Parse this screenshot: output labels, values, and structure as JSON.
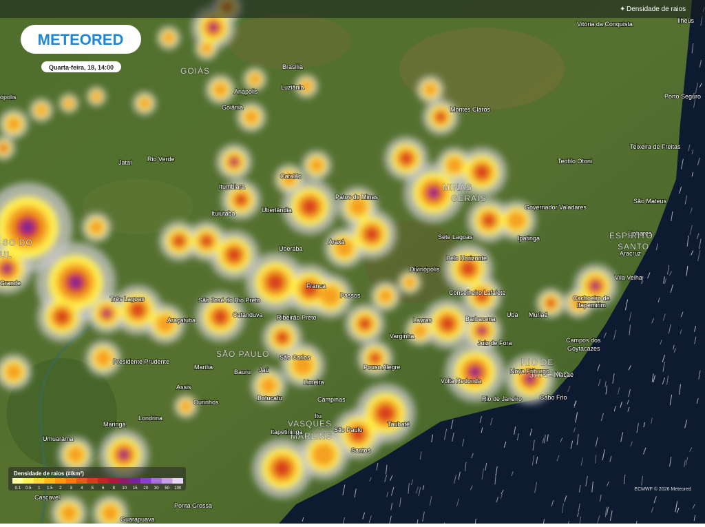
{
  "header": {
    "logo": "METEORED",
    "date": "Quarta-feira, 18, 14:00",
    "layer": "Densidade de raios"
  },
  "legend": {
    "title": "Densidade de raios (#/km²)",
    "items": [
      {
        "label": "0.1",
        "color": "#ffffa0"
      },
      {
        "label": "0.5",
        "color": "#fff060"
      },
      {
        "label": "1",
        "color": "#ffd830"
      },
      {
        "label": "1.5",
        "color": "#ffb820"
      },
      {
        "label": "2",
        "color": "#ff9a18"
      },
      {
        "label": "3",
        "color": "#f57a18"
      },
      {
        "label": "4",
        "color": "#e85a1a"
      },
      {
        "label": "5",
        "color": "#d83c1c"
      },
      {
        "label": "6",
        "color": "#c42424"
      },
      {
        "label": "8",
        "color": "#a81c3c"
      },
      {
        "label": "10",
        "color": "#8c1c6c"
      },
      {
        "label": "15",
        "color": "#7a2494"
      },
      {
        "label": "20",
        "color": "#8a40c0"
      },
      {
        "label": "30",
        "color": "#a870d8"
      },
      {
        "label": "50",
        "color": "#c8a0e8"
      },
      {
        "label": "100",
        "color": "#e8d8f8"
      }
    ]
  },
  "places": [
    "Vitória da Conquista",
    "Ilhéus",
    "Brasília",
    "GOIÁS",
    "Anápolis",
    "Luziânia",
    "Goiânia",
    "Porto Seguro",
    "Montes Claros",
    "Teixeira de Freitas",
    "Jataí",
    "Rio Verde",
    "Teófilo Otoni",
    "MINAS",
    "GERAIS",
    "Catalão",
    "Itumbiara",
    "Patos de Minas",
    "São Mateus",
    "Governador Valadares",
    "Uberlândia",
    "Ituiutaba",
    "Linhares",
    "ESPÍRITO",
    "SANTO",
    "Sete Lagoas",
    "Ipatinga",
    "Uberaba",
    "Araxá",
    "Aracruz",
    "Belo Horizonte",
    "Divinópolis",
    "Vila Velha",
    "Franca",
    "Passos",
    "Conselheiro Lafaiete",
    "Cachoeiro de",
    "Itapemirim",
    "Três Lagoas",
    "São José do Rio Preto",
    "Ribeirão Preto",
    "Araçatuba",
    "Catanduva",
    "Barbacena",
    "Ubá",
    "Muriaé",
    "Lavras",
    "Varginha",
    "Juiz de Fora",
    "Campos dos",
    "Goytacazes",
    "SÃO PAULO",
    "São Carlos",
    "Presidente Prudente",
    "Marília",
    "Bauru",
    "Jaú",
    "RIO DE",
    "JANEIRO",
    "Nova Friburgo",
    "Macaé",
    "Pouso Alegre",
    "Limeira",
    "Volta Redonda",
    "Assis",
    "Botucatu",
    "Campinas",
    "Rio de Janeiro",
    "Cabo Frio",
    "Ourinhos",
    "Taubaté",
    "Itu",
    "Londrina",
    "Maringá",
    "VASQUES",
    "MARLINS",
    "São Paulo",
    "Itapetininga",
    "Umuarama",
    "Santos",
    "Cascavel",
    "Ponta Grossa",
    "Guarapuava",
    "ópolis",
    "SO DO",
    "UL",
    "Grande"
  ],
  "credit": "ECMWF © 2026 Meteored"
}
